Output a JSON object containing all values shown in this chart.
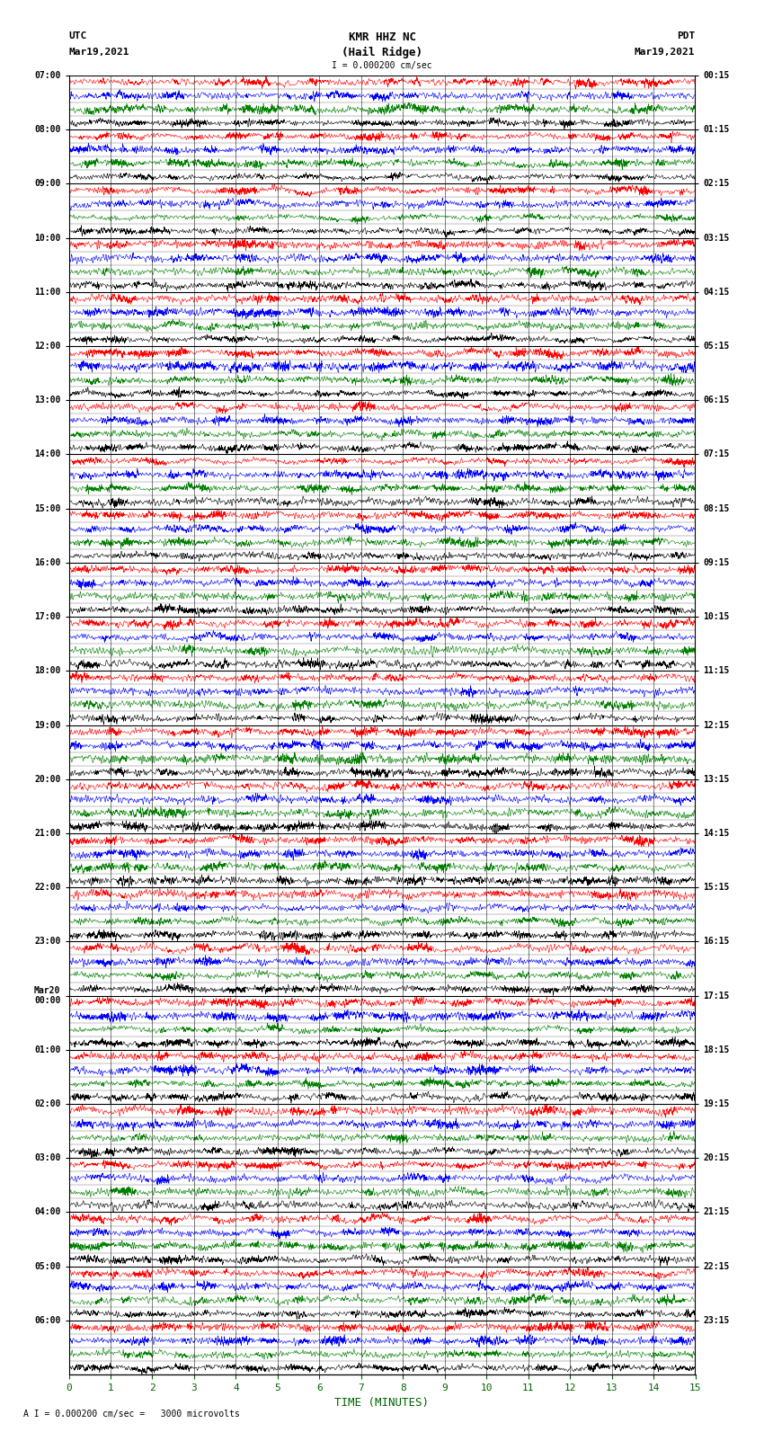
{
  "title_line1": "KMR HHZ NC",
  "title_line2": "(Hail Ridge)",
  "scale_label": "I = 0.000200 cm/sec",
  "bottom_label": "A I = 0.000200 cm/sec =   3000 microvolts",
  "xlabel": "TIME (MINUTES)",
  "utc_label": "UTC",
  "utc_date": "Mar19,2021",
  "pdt_label": "PDT",
  "pdt_date": "Mar19,2021",
  "left_times": [
    "07:00",
    "08:00",
    "09:00",
    "10:00",
    "11:00",
    "12:00",
    "13:00",
    "14:00",
    "15:00",
    "16:00",
    "17:00",
    "18:00",
    "19:00",
    "20:00",
    "21:00",
    "22:00",
    "23:00",
    "Mar20\n00:00",
    "01:00",
    "02:00",
    "03:00",
    "04:00",
    "05:00",
    "06:00"
  ],
  "right_times": [
    "00:15",
    "01:15",
    "02:15",
    "03:15",
    "04:15",
    "05:15",
    "06:15",
    "07:15",
    "08:15",
    "09:15",
    "10:15",
    "11:15",
    "12:15",
    "13:15",
    "14:15",
    "15:15",
    "16:15",
    "17:15",
    "18:15",
    "19:15",
    "20:15",
    "21:15",
    "22:15",
    "23:15"
  ],
  "n_rows": 24,
  "n_cols": 15,
  "xticks": [
    0,
    1,
    2,
    3,
    4,
    5,
    6,
    7,
    8,
    9,
    10,
    11,
    12,
    13,
    14,
    15
  ],
  "colors": [
    "red",
    "blue",
    "green",
    "black"
  ],
  "bg_color": "white",
  "sub_traces": 4,
  "fig_width": 8.5,
  "fig_height": 16.13,
  "dpi": 100
}
